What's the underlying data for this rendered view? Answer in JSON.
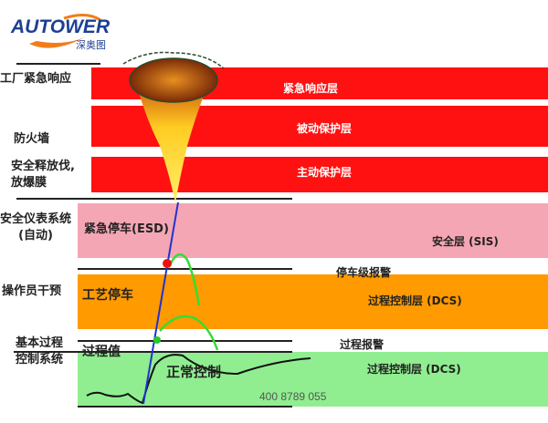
{
  "logo": {
    "text": "AUTOWER",
    "subtext": "深奥图"
  },
  "bands": {
    "emergency": {
      "label": "紧急响应层",
      "color": "#ff1111"
    },
    "passive": {
      "label": "被动保护层",
      "color": "#ff1111"
    },
    "active": {
      "label": "主动保护层",
      "color": "#ff1111"
    },
    "sis": {
      "label": "安全层 (SIS)",
      "inner": "紧急停车(ESD)",
      "color": "#f4a6b4"
    },
    "operator": {
      "label1": "停车级报警",
      "label2": "过程控制层 (DCS)",
      "inner": "工艺停车",
      "color": "#ff9a00"
    },
    "bpcs": {
      "label1": "过程报警",
      "label2": "过程控制层 (DCS)",
      "inner1": "过程值",
      "inner2": "正常控制",
      "color": "#90ee90"
    }
  },
  "left_labels": {
    "plant_response": "工厂紧急响应",
    "firewall": "防火墙",
    "relief": "安全释放伐,\n放爆膜",
    "sis": "安全仪表系统\n(自动)",
    "operator": "操作员干预",
    "bpcs": "基本过程\n控制系统"
  },
  "footer": {
    "phone": "400 8789 055"
  }
}
